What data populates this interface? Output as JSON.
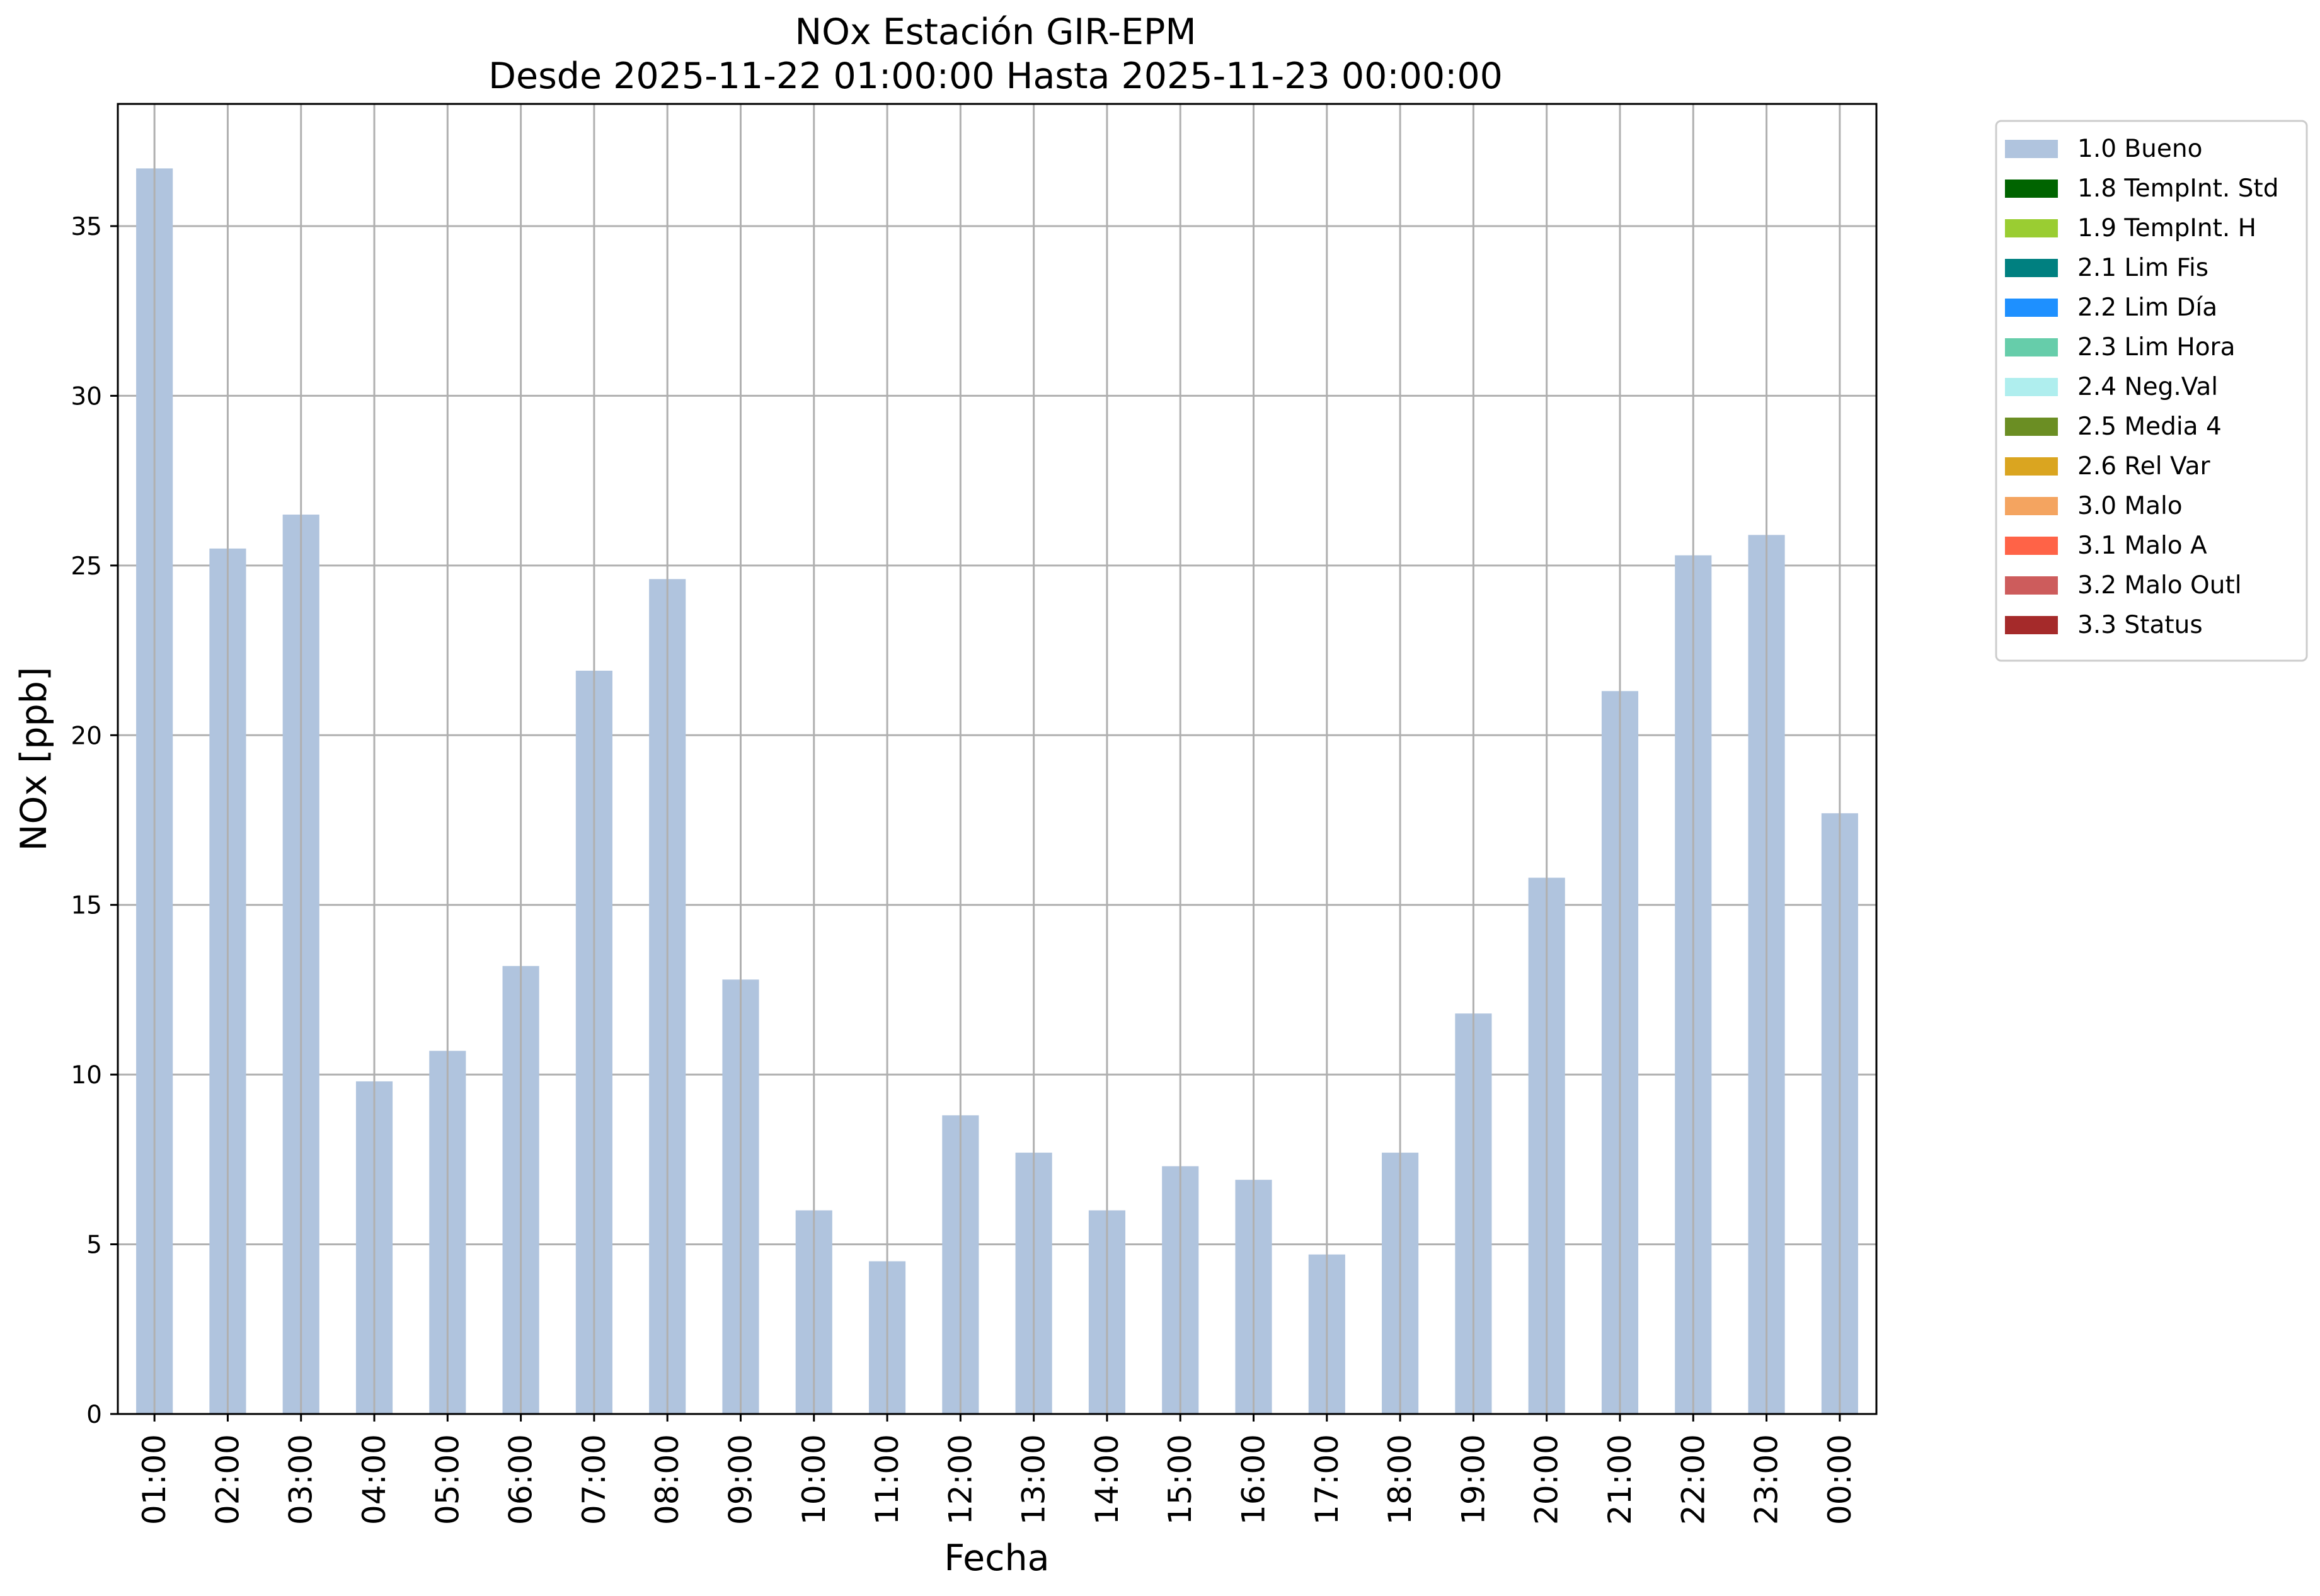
{
  "chart_data": {
    "type": "bar",
    "title": "NOx Estación GIR-EPM",
    "subtitle": "Desde 2025-11-22 01:00:00 Hasta 2025-11-23 00:00:00",
    "xlabel": "Fecha",
    "ylabel": "NOx [ppb]",
    "ylim": [
      0,
      38.6
    ],
    "yticks": [
      0,
      5,
      10,
      15,
      20,
      25,
      30,
      35
    ],
    "grid": true,
    "legend_position": "outside-top-right",
    "categories": [
      "01:00",
      "02:00",
      "03:00",
      "04:00",
      "05:00",
      "06:00",
      "07:00",
      "08:00",
      "09:00",
      "10:00",
      "11:00",
      "12:00",
      "13:00",
      "14:00",
      "15:00",
      "16:00",
      "17:00",
      "18:00",
      "19:00",
      "20:00",
      "21:00",
      "22:00",
      "23:00",
      "00:00"
    ],
    "series": [
      {
        "name": "1.0 Bueno",
        "color": "#b0c4de",
        "values": [
          36.7,
          25.5,
          26.5,
          9.8,
          10.7,
          13.2,
          21.9,
          24.6,
          12.8,
          6.0,
          4.5,
          8.8,
          7.7,
          6.0,
          7.3,
          6.9,
          4.7,
          7.7,
          11.8,
          15.8,
          21.3,
          25.3,
          25.9,
          17.7
        ]
      }
    ],
    "legend": [
      {
        "label": "1.0 Bueno",
        "color": "#b0c4de"
      },
      {
        "label": "1.8 TempInt. Std",
        "color": "#006400"
      },
      {
        "label": "1.9 TempInt. H",
        "color": "#9acd32"
      },
      {
        "label": "2.1 Lim Fis",
        "color": "#008080"
      },
      {
        "label": "2.2 Lim Día",
        "color": "#1e90ff"
      },
      {
        "label": "2.3 Lim Hora",
        "color": "#66cdaa"
      },
      {
        "label": "2.4 Neg.Val",
        "color": "#afeeee"
      },
      {
        "label": "2.5 Media 4",
        "color": "#6b8e23"
      },
      {
        "label": "2.6 Rel Var",
        "color": "#daa520"
      },
      {
        "label": "3.0 Malo",
        "color": "#f4a460"
      },
      {
        "label": "3.1 Malo A",
        "color": "#ff6347"
      },
      {
        "label": "3.2 Malo Outl",
        "color": "#cd5c5c"
      },
      {
        "label": "3.3 Status",
        "color": "#a52a2a"
      }
    ]
  }
}
